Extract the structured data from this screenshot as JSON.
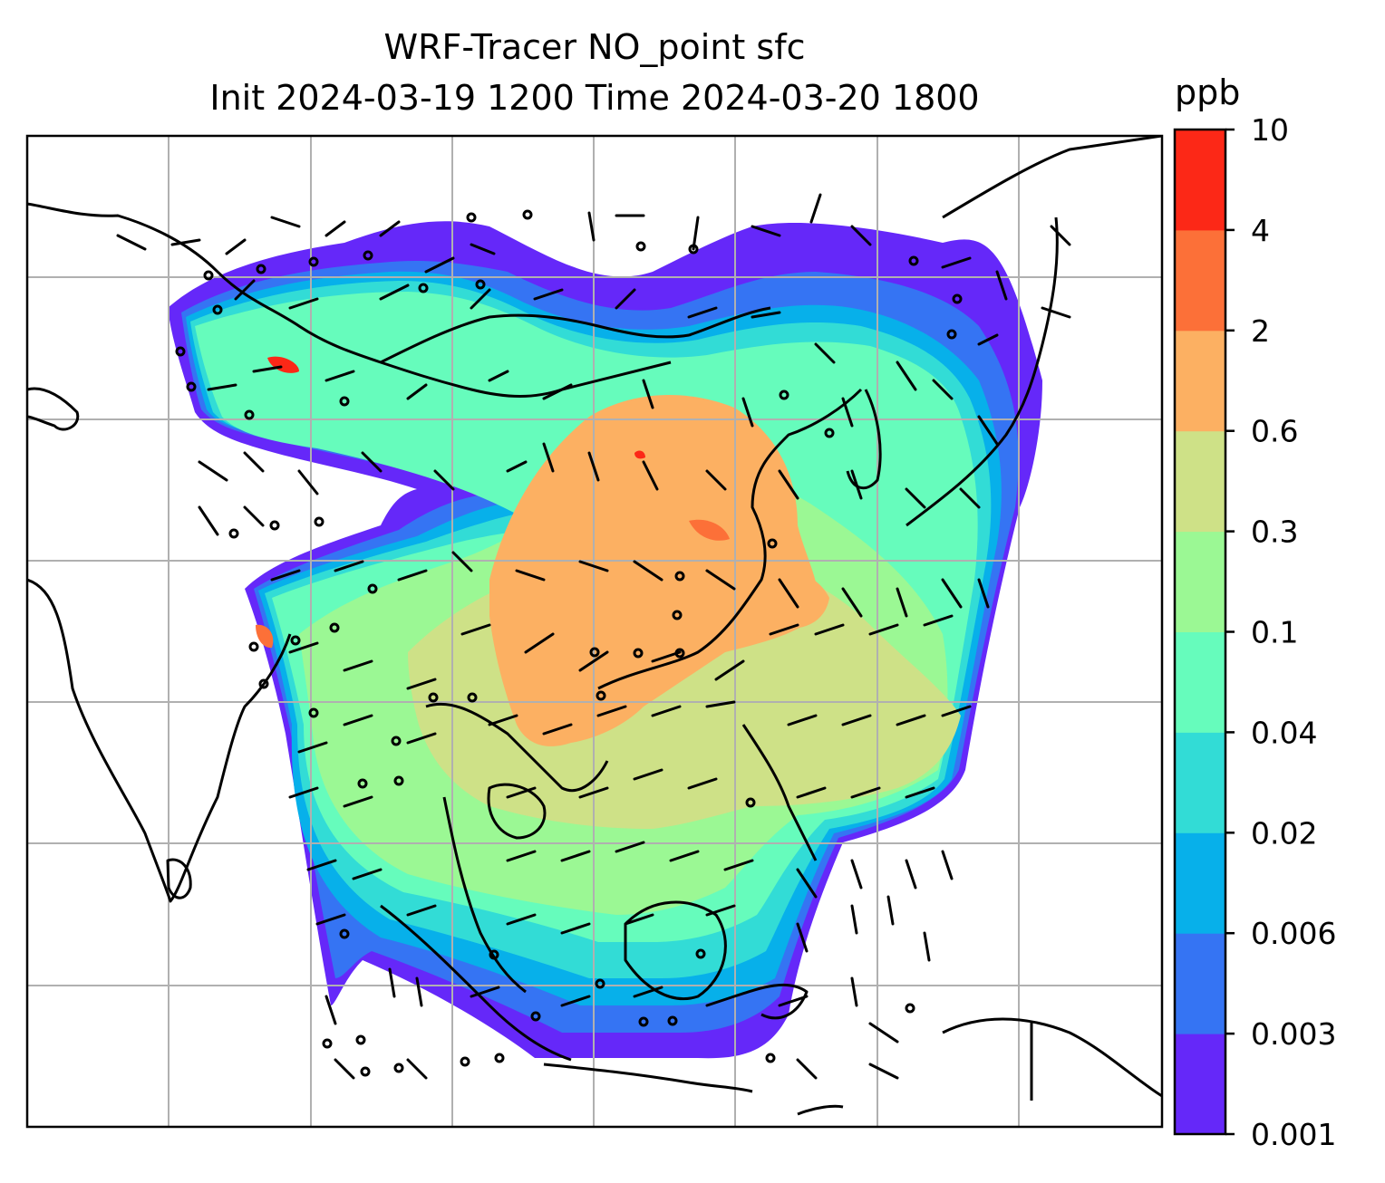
{
  "title": {
    "line1": "WRF-Tracer NO_point sfc",
    "line2": "Init 2024-03-19 1200 Time 2024-03-20 1800"
  },
  "colorbar": {
    "unit": "ppb",
    "ticks": [
      "0.001",
      "0.003",
      "0.006",
      "0.02",
      "0.04",
      "0.1",
      "0.3",
      "0.6",
      "2",
      "4",
      "10"
    ],
    "colors": [
      "#6528f9",
      "#3574f3",
      "#07b0ea",
      "#32dcd6",
      "#66fcbc",
      "#9bf894",
      "#cee187",
      "#fcb062",
      "#fc7038",
      "#fc2817"
    ]
  },
  "map": {
    "colors": {
      "coast": "#000000",
      "grid": "#b0b0b0",
      "barb": "#000000"
    }
  }
}
